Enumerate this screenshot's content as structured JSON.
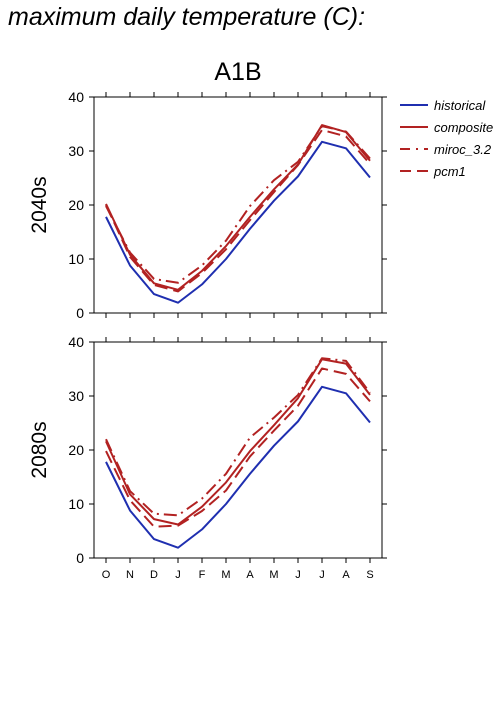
{
  "page": {
    "title": "maximum daily temperature (C):"
  },
  "colors": {
    "historical": "#1f2fb0",
    "scenario": "#b22222",
    "axis": "#000000",
    "background": "#ffffff"
  },
  "chart_data": [
    {
      "type": "line",
      "title": "A1B",
      "ylabel": "2040s",
      "xlabel": "",
      "ylim": [
        0,
        40
      ],
      "yticks": [
        0,
        10,
        20,
        30,
        40
      ],
      "categories": [
        "O",
        "N",
        "D",
        "J",
        "F",
        "M",
        "A",
        "M",
        "J",
        "J",
        "A",
        "S"
      ],
      "show_category_labels": false,
      "grid": false,
      "legend": "right",
      "series": [
        {
          "name": "historical",
          "style": "solid",
          "color": "#1f2fb0",
          "values": [
            17.8,
            8.8,
            3.5,
            1.9,
            5.3,
            10.0,
            15.6,
            20.8,
            25.3,
            31.7,
            30.5,
            25.1
          ]
        },
        {
          "name": "composite",
          "style": "solid",
          "color": "#b22222",
          "values": [
            20.2,
            10.8,
            5.5,
            4.3,
            7.8,
            12.4,
            17.8,
            22.9,
            27.5,
            34.8,
            33.5,
            28.2
          ]
        },
        {
          "name": "miroc_3.2",
          "style": "dashdot",
          "color": "#b22222",
          "values": [
            19.8,
            11.2,
            6.3,
            5.6,
            8.8,
            13.4,
            19.8,
            24.6,
            28.0,
            34.6,
            33.6,
            28.6
          ]
        },
        {
          "name": "pcm1",
          "style": "dashed",
          "color": "#b22222",
          "values": [
            20.0,
            10.4,
            5.2,
            4.0,
            7.4,
            11.8,
            17.2,
            22.4,
            27.4,
            33.9,
            32.7,
            27.6
          ]
        }
      ]
    },
    {
      "type": "line",
      "title": "",
      "ylabel": "2080s",
      "xlabel": "",
      "ylim": [
        0,
        40
      ],
      "yticks": [
        0,
        10,
        20,
        30,
        40
      ],
      "categories": [
        "O",
        "N",
        "D",
        "J",
        "F",
        "M",
        "A",
        "M",
        "J",
        "J",
        "A",
        "S"
      ],
      "show_category_labels": true,
      "grid": false,
      "series": [
        {
          "name": "historical",
          "style": "solid",
          "color": "#1f2fb0",
          "values": [
            17.8,
            8.8,
            3.5,
            1.9,
            5.3,
            10.0,
            15.6,
            20.8,
            25.3,
            31.7,
            30.5,
            25.1
          ]
        },
        {
          "name": "composite",
          "style": "solid",
          "color": "#b22222",
          "values": [
            21.6,
            11.8,
            7.2,
            6.2,
            9.5,
            14.0,
            19.8,
            24.6,
            29.6,
            36.8,
            36.0,
            30.2
          ]
        },
        {
          "name": "miroc_3.2",
          "style": "dashdot",
          "color": "#b22222",
          "values": [
            22.0,
            12.4,
            8.2,
            7.9,
            11.0,
            15.6,
            22.3,
            26.0,
            30.2,
            37.0,
            36.5,
            30.6
          ]
        },
        {
          "name": "pcm1",
          "style": "dashed",
          "color": "#b22222",
          "values": [
            19.8,
            10.7,
            5.8,
            6.0,
            8.7,
            12.5,
            18.8,
            23.6,
            28.2,
            35.1,
            34.1,
            29.0
          ]
        }
      ]
    }
  ]
}
